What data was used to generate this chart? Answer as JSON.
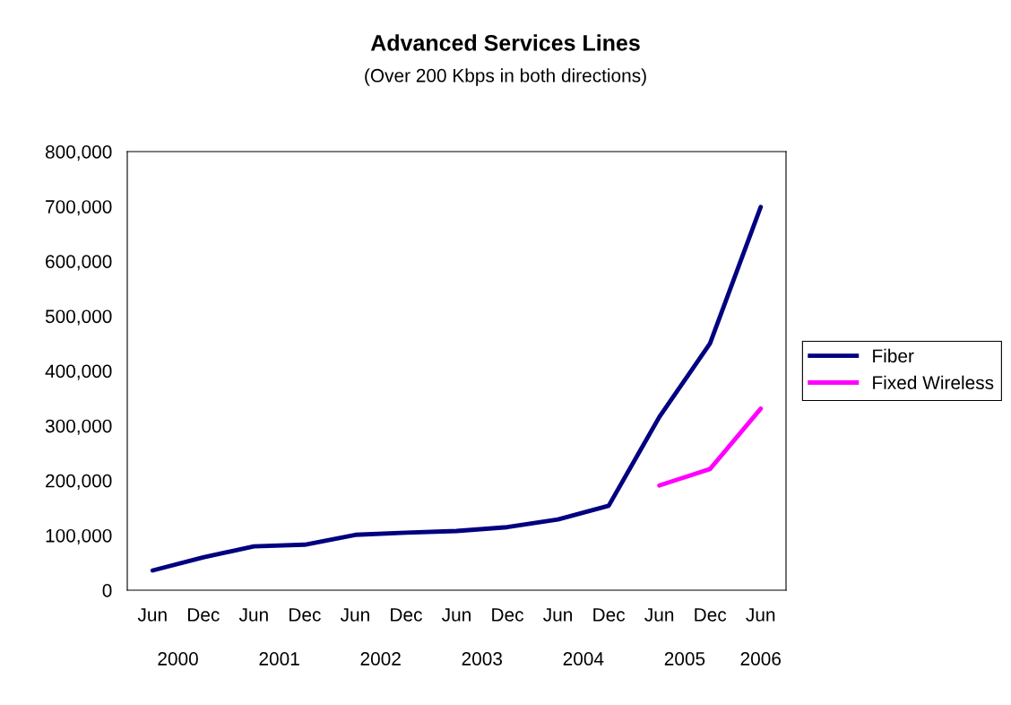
{
  "chart_data": {
    "type": "line",
    "title": "Advanced Services Lines",
    "subtitle": "(Over 200 Kbps in both directions)",
    "categories": [
      "Jun",
      "Dec",
      "Jun",
      "Dec",
      "Jun",
      "Dec",
      "Jun",
      "Dec",
      "Jun",
      "Dec",
      "Jun",
      "Dec",
      "Jun"
    ],
    "annotations": [
      "2000",
      "2001",
      "2002",
      "2003",
      "2004",
      "2005",
      "2006"
    ],
    "series": [
      {
        "name": "Fiber",
        "color": "#000080",
        "values": [
          36000,
          60000,
          80000,
          83000,
          101000,
          105000,
          108000,
          115000,
          129000,
          154000,
          316000,
          450000,
          699000
        ]
      },
      {
        "name": "Fixed Wireless",
        "color": "#ff00ff",
        "values": [
          null,
          null,
          null,
          null,
          null,
          null,
          null,
          null,
          null,
          null,
          191000,
          221000,
          331000
        ]
      }
    ],
    "ylim": [
      0,
      800000
    ],
    "yticks": [
      {
        "value": 0,
        "label": "0"
      },
      {
        "value": 100000,
        "label": "100,000"
      },
      {
        "value": 200000,
        "label": "200,000"
      },
      {
        "value": 300000,
        "label": "300,000"
      },
      {
        "value": 400000,
        "label": "400,000"
      },
      {
        "value": 500000,
        "label": "500,000"
      },
      {
        "value": 600000,
        "label": "600,000"
      },
      {
        "value": 700000,
        "label": "700,000"
      },
      {
        "value": 800000,
        "label": "800,000"
      }
    ],
    "grid": false,
    "legend": "right",
    "marker": "none",
    "line_style": "solid"
  }
}
